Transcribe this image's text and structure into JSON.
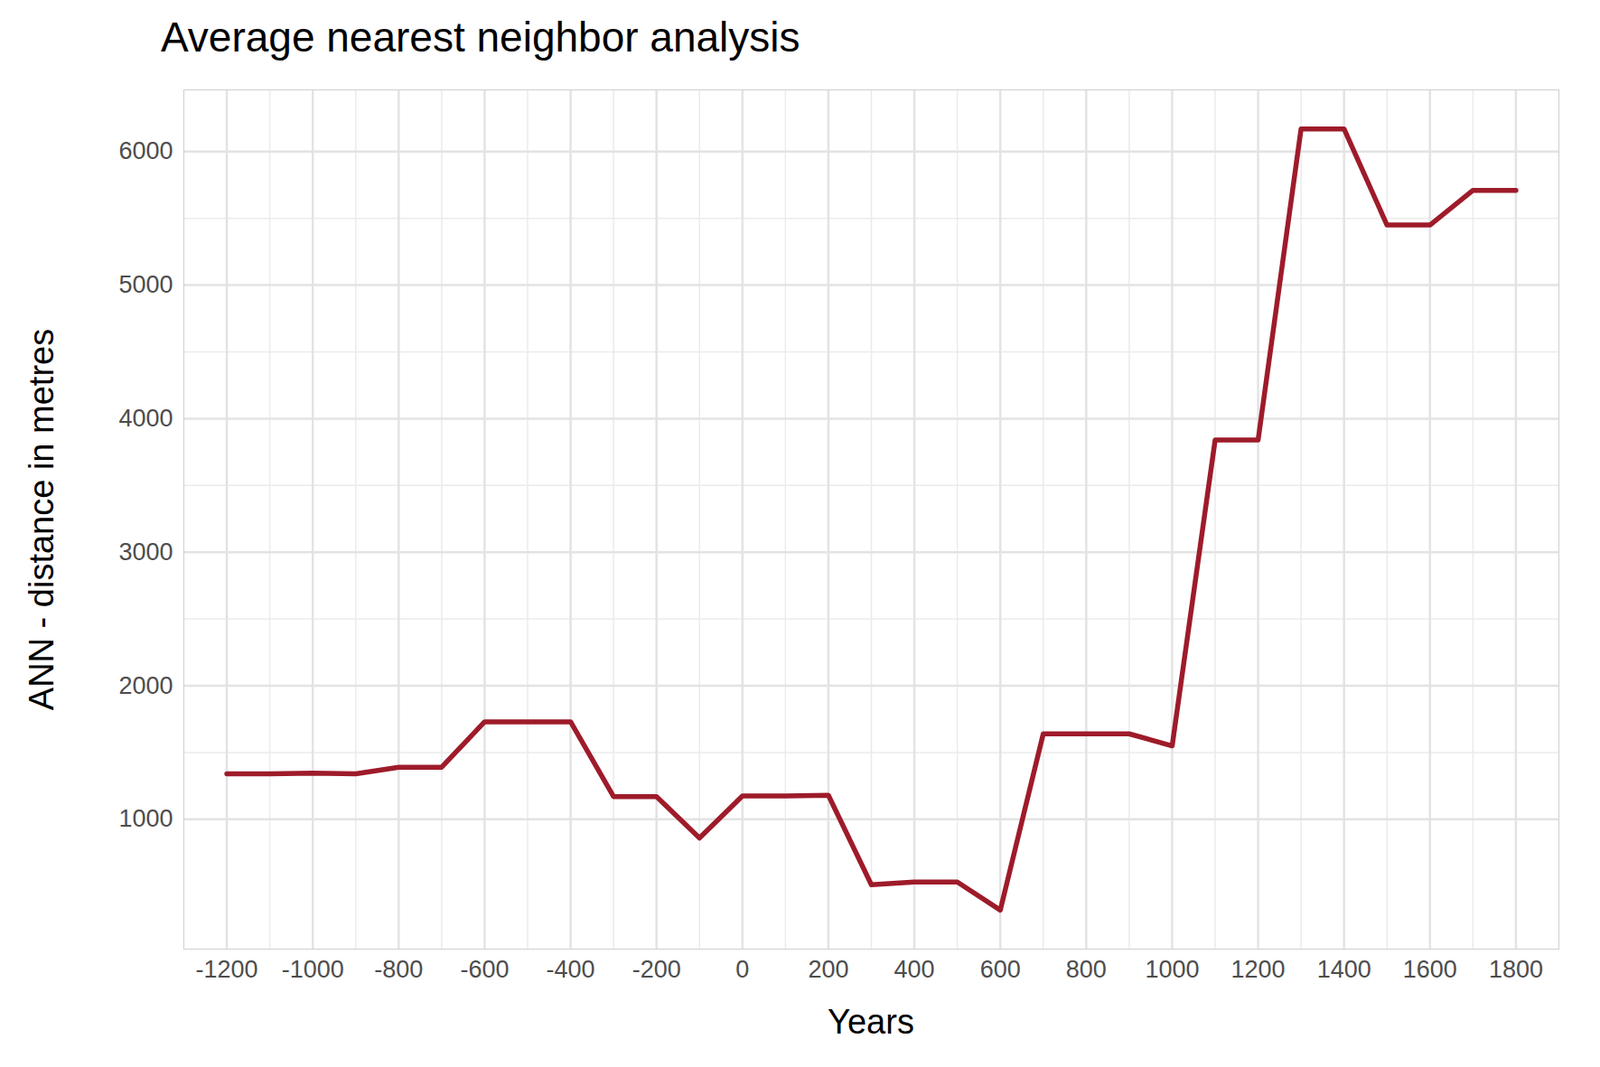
{
  "chart_data": {
    "type": "line",
    "title": "Average nearest neighbor analysis",
    "x_label": "Years",
    "y_label": "ANN - distance in metres",
    "x": [
      -1200,
      -1100,
      -1000,
      -900,
      -800,
      -700,
      -600,
      -500,
      -400,
      -300,
      -200,
      -100,
      0,
      100,
      200,
      300,
      400,
      500,
      600,
      700,
      800,
      900,
      1000,
      1100,
      1200,
      1300,
      1400,
      1500,
      1600,
      1700,
      1800
    ],
    "values": [
      1340,
      1340,
      1345,
      1340,
      1390,
      1390,
      1730,
      1730,
      1730,
      1170,
      1170,
      860,
      1175,
      1175,
      1180,
      510,
      530,
      530,
      320,
      1640,
      1640,
      1640,
      1550,
      3840,
      3840,
      6170,
      6170,
      5450,
      5450,
      5710,
      5710
    ],
    "color": "#9e1b2a",
    "xlim": [
      -1300,
      1900
    ],
    "ylim": [
      28,
      6462
    ],
    "xticks": [
      -1200,
      -1000,
      -800,
      -600,
      -400,
      -200,
      0,
      200,
      400,
      600,
      800,
      1000,
      1200,
      1400,
      1600,
      1800
    ],
    "yticks": [
      1000,
      2000,
      3000,
      4000,
      5000,
      6000
    ],
    "grid": true
  }
}
